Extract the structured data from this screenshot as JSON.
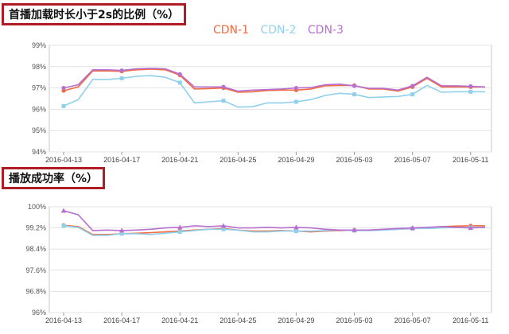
{
  "legend": [
    {
      "name": "CDN-1",
      "color": "#f06a40"
    },
    {
      "name": "CDN-2",
      "color": "#8fd0ec"
    },
    {
      "name": "CDN-3",
      "color": "#b76fd0"
    }
  ],
  "chart_data": [
    {
      "type": "line",
      "title": "首播加载时长小于2s的比例（%）",
      "x": [
        "2016-04-13",
        "2016-04-14",
        "2016-04-15",
        "2016-04-16",
        "2016-04-17",
        "2016-04-18",
        "2016-04-19",
        "2016-04-20",
        "2016-04-21",
        "2016-04-22",
        "2016-04-23",
        "2016-04-24",
        "2016-04-25",
        "2016-04-26",
        "2016-04-27",
        "2016-04-28",
        "2016-04-29",
        "2016-04-30",
        "2016-05-01",
        "2016-05-02",
        "2016-05-03",
        "2016-05-04",
        "2016-05-05",
        "2016-05-06",
        "2016-05-07",
        "2016-05-08",
        "2016-05-09",
        "2016-05-10",
        "2016-05-11",
        "2016-05-12"
      ],
      "xticks": [
        "2016-04-13",
        "2016-04-17",
        "2016-04-21",
        "2016-04-25",
        "2016-04-29",
        "2016-05-03",
        "2016-05-07",
        "2016-05-11"
      ],
      "yticks": [
        "94%",
        "95%",
        "96%",
        "97%",
        "98%",
        "99%"
      ],
      "ylim": [
        94,
        99
      ],
      "series": [
        {
          "name": "CDN-1",
          "color": "#f06a40",
          "values": [
            96.87,
            97.05,
            97.8,
            97.8,
            97.78,
            97.85,
            97.88,
            97.85,
            97.6,
            96.95,
            96.97,
            97.0,
            96.8,
            96.82,
            96.88,
            96.9,
            96.9,
            96.95,
            97.1,
            97.12,
            97.12,
            96.95,
            96.95,
            96.85,
            97.05,
            97.45,
            97.05,
            97.05,
            97.05,
            97.05
          ]
        },
        {
          "name": "CDN-2",
          "color": "#8fd0ec",
          "values": [
            96.15,
            96.45,
            97.4,
            97.4,
            97.45,
            97.55,
            97.58,
            97.5,
            97.25,
            96.3,
            96.35,
            96.4,
            96.1,
            96.12,
            96.3,
            96.3,
            96.35,
            96.45,
            96.65,
            96.75,
            96.7,
            96.55,
            96.58,
            96.6,
            96.7,
            97.12,
            96.8,
            96.82,
            96.82,
            96.82
          ]
        },
        {
          "name": "CDN-3",
          "color": "#b76fd0",
          "values": [
            97.0,
            97.15,
            97.85,
            97.85,
            97.82,
            97.9,
            97.92,
            97.9,
            97.65,
            97.05,
            97.05,
            97.05,
            96.85,
            96.9,
            96.92,
            96.95,
            97.0,
            97.02,
            97.15,
            97.18,
            97.1,
            96.98,
            96.98,
            96.9,
            97.1,
            97.5,
            97.1,
            97.1,
            97.08,
            97.05
          ]
        }
      ],
      "markers": [
        0,
        4,
        8,
        11,
        16,
        20,
        24,
        28
      ]
    },
    {
      "type": "line",
      "title": "播放成功率（%）",
      "x": [
        "2016-04-13",
        "2016-04-14",
        "2016-04-15",
        "2016-04-16",
        "2016-04-17",
        "2016-04-18",
        "2016-04-19",
        "2016-04-20",
        "2016-04-21",
        "2016-04-22",
        "2016-04-23",
        "2016-04-24",
        "2016-04-25",
        "2016-04-26",
        "2016-04-27",
        "2016-04-28",
        "2016-04-29",
        "2016-04-30",
        "2016-05-01",
        "2016-05-02",
        "2016-05-03",
        "2016-05-04",
        "2016-05-05",
        "2016-05-06",
        "2016-05-07",
        "2016-05-08",
        "2016-05-09",
        "2016-05-10",
        "2016-05-11",
        "2016-05-12"
      ],
      "xticks": [
        "2016-04-13",
        "2016-04-17",
        "2016-04-21",
        "2016-04-25",
        "2016-04-29",
        "2016-05-03",
        "2016-05-07",
        "2016-05-11"
      ],
      "yticks": [
        "96%",
        "96.8%",
        "97.6%",
        "98.4%",
        "99.2%",
        "100%"
      ],
      "ylim": [
        96,
        100
      ],
      "series": [
        {
          "name": "CDN-1",
          "color": "#f06a40",
          "values": [
            99.3,
            99.25,
            98.95,
            98.95,
            98.98,
            99.0,
            99.02,
            99.05,
            99.08,
            99.12,
            99.15,
            99.18,
            99.12,
            99.08,
            99.08,
            99.1,
            99.08,
            99.05,
            99.08,
            99.1,
            99.12,
            99.12,
            99.13,
            99.15,
            99.17,
            99.2,
            99.25,
            99.27,
            99.28,
            99.28
          ]
        },
        {
          "name": "CDN-2",
          "color": "#8fd0ec",
          "values": [
            99.28,
            99.22,
            98.92,
            98.92,
            98.98,
            98.98,
            98.95,
            99.0,
            99.05,
            99.1,
            99.15,
            99.15,
            99.12,
            99.05,
            99.05,
            99.08,
            99.08,
            99.08,
            99.1,
            99.12,
            99.1,
            99.1,
            99.12,
            99.15,
            99.18,
            99.18,
            99.2,
            99.22,
            99.22,
            99.22
          ]
        },
        {
          "name": "CDN-3",
          "color": "#b76fd0",
          "values": [
            99.85,
            99.7,
            99.1,
            99.12,
            99.1,
            99.12,
            99.15,
            99.2,
            99.22,
            99.28,
            99.25,
            99.28,
            99.2,
            99.2,
            99.22,
            99.2,
            99.22,
            99.2,
            99.15,
            99.12,
            99.12,
            99.12,
            99.15,
            99.18,
            99.2,
            99.22,
            99.25,
            99.22,
            99.2,
            99.22
          ]
        }
      ],
      "markers": [
        0,
        4,
        8,
        11,
        16,
        20,
        24,
        28
      ]
    }
  ]
}
